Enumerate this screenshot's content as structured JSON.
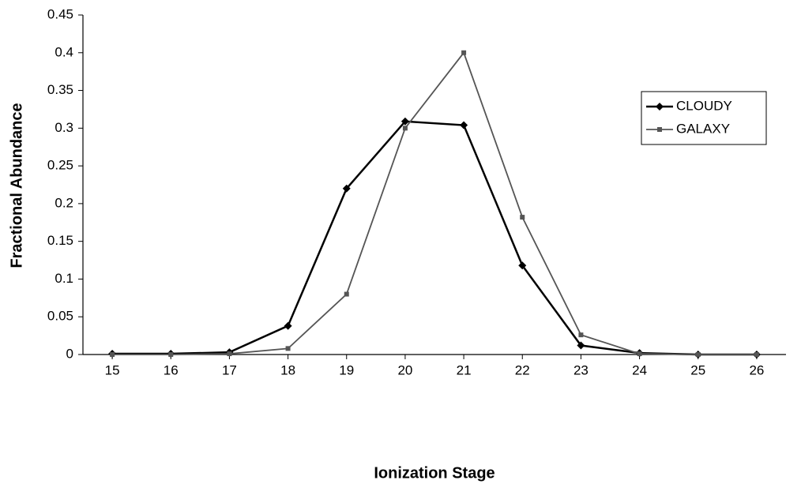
{
  "chart_data": {
    "type": "line",
    "x_label": "Ionization Stage",
    "y_label": "Fractional Abundance",
    "x": [
      15,
      16,
      17,
      18,
      19,
      20,
      21,
      22,
      23,
      24,
      25,
      26
    ],
    "series": [
      {
        "name": "CLOUDY",
        "color": "#000000",
        "marker": "diamond",
        "values": [
          0.001,
          0.001,
          0.003,
          0.038,
          0.22,
          0.309,
          0.304,
          0.118,
          0.012,
          0.002,
          0,
          0
        ]
      },
      {
        "name": "GALAXY",
        "color": "#555555",
        "marker": "square",
        "values": [
          0,
          0,
          0.001,
          0.008,
          0.08,
          0.3,
          0.4,
          0.182,
          0.026,
          0.001,
          0,
          0
        ]
      }
    ],
    "xlim": [
      14.5,
      26.5
    ],
    "xticks": [
      15,
      16,
      17,
      18,
      19,
      20,
      21,
      22,
      23,
      24,
      25,
      26
    ],
    "ylim": [
      0,
      0.45
    ],
    "yticks": [
      0,
      0.05,
      0.1,
      0.15,
      0.2,
      0.25,
      0.3,
      0.35,
      0.4,
      0.45
    ],
    "grid": false,
    "legend": "right"
  }
}
